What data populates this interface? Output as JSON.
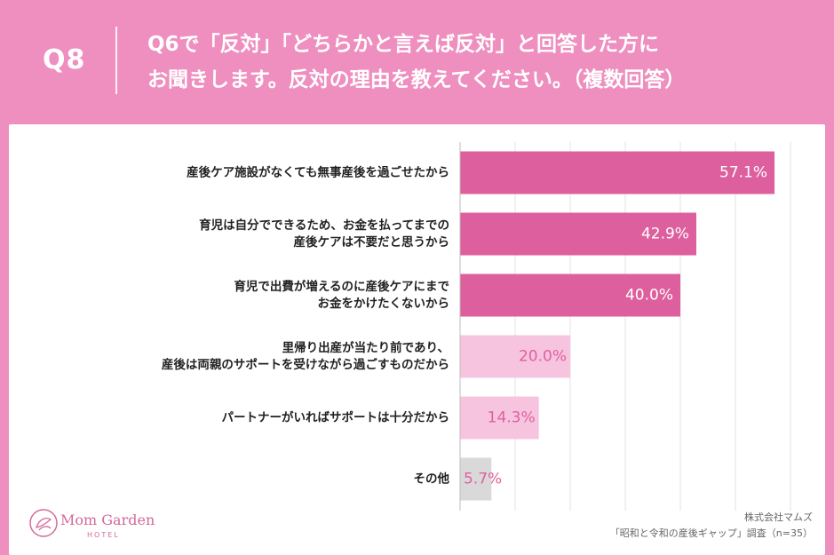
{
  "header": {
    "qnum": "Q8",
    "question_lines": [
      "Q6で「反対」「どちらかと言えば反対」と回答した方に",
      "お聞きします。反対の理由を教えてください。（複数回答）"
    ]
  },
  "colors": {
    "background": "#ee8fbf",
    "bar_dark": "#dd5f9d",
    "bar_light": "#f7c4e0",
    "bar_other": "#d9d9d9",
    "label_light": "#e0609f"
  },
  "chart_data": {
    "type": "bar",
    "orientation": "horizontal",
    "unit": "%",
    "xlim": [
      0,
      100
    ],
    "categories": [
      [
        "産後ケア施設がなくても無事産後を過ごせたから"
      ],
      [
        "育児は自分でできるため、お金を払ってまでの",
        "産後ケアは不要だと思うから"
      ],
      [
        "育児で出費が増えるのに産後ケアにまで",
        "お金をかけたくないから"
      ],
      [
        "里帰り出産が当たり前であり、",
        "産後は両親のサポートを受けながら過ごすものだから"
      ],
      [
        "パートナーがいればサポートは十分だから"
      ],
      [
        "その他"
      ]
    ],
    "values": [
      57.1,
      42.9,
      40.0,
      20.0,
      14.3,
      5.7
    ],
    "value_labels": [
      "57.1%",
      "42.9%",
      "40.0%",
      "20.0%",
      "14.3%",
      "5.7%"
    ],
    "bar_styles": [
      "dark",
      "dark",
      "dark",
      "light",
      "light",
      "other"
    ],
    "grid": true
  },
  "logo": {
    "name": "Mom Garden",
    "sub": "HOTEL"
  },
  "credit": {
    "company": "株式会社マムズ",
    "survey": "「昭和と令和の産後ギャップ」調査（n=35）"
  }
}
